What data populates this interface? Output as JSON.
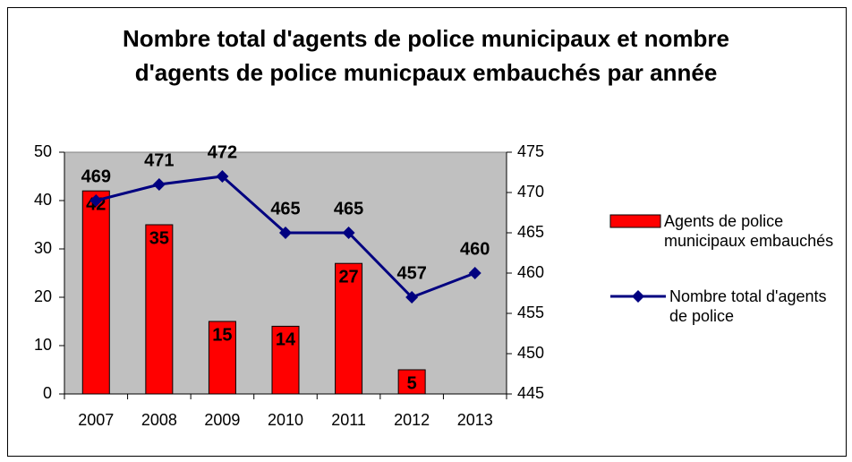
{
  "chart_data": {
    "type": "bar_line",
    "title": "Nombre total d'agents de police municipaux et nombre d'agents de police municpaux embauchés par année",
    "categories": [
      "2007",
      "2008",
      "2009",
      "2010",
      "2011",
      "2012",
      "2013"
    ],
    "series": [
      {
        "name": "Agents de police municipaux embauchés",
        "type": "bar",
        "color": "#ff0000",
        "values": [
          42,
          35,
          15,
          14,
          27,
          5,
          null
        ]
      },
      {
        "name": "Nombre total d'agents de police",
        "type": "line",
        "color": "#000080",
        "axis": "y2",
        "values": [
          469,
          471,
          472,
          465,
          465,
          457,
          460
        ]
      }
    ],
    "ylim": [
      0,
      50
    ],
    "yticks": [
      0,
      10,
      20,
      30,
      40,
      50
    ],
    "y2lim": [
      445,
      475
    ],
    "y2ticks": [
      445,
      450,
      455,
      460,
      465,
      470,
      475
    ],
    "legend": "right",
    "plot_background": "#c0c0c0"
  }
}
